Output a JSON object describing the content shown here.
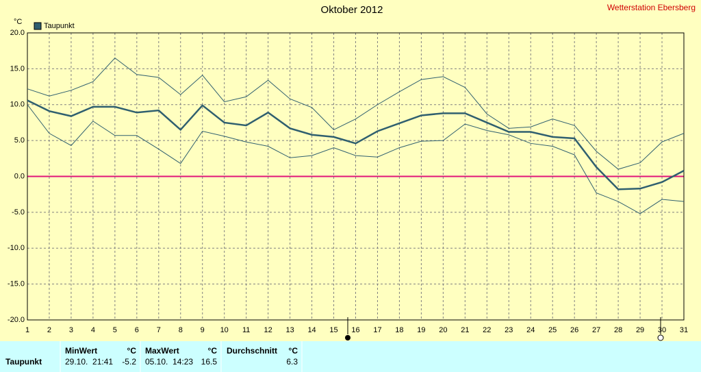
{
  "chart_data": {
    "type": "line",
    "title": "Oktober 2012",
    "station": "Wetterstation Ebersberg",
    "y_label": "°C",
    "x": [
      1,
      2,
      3,
      4,
      5,
      6,
      7,
      8,
      9,
      10,
      11,
      12,
      13,
      14,
      15,
      16,
      17,
      18,
      19,
      20,
      21,
      22,
      23,
      24,
      25,
      26,
      27,
      28,
      29,
      30,
      31
    ],
    "series": [
      {
        "name": "Taupunkt",
        "color": "#2f5f6f",
        "values": [
          10.6,
          9.1,
          8.4,
          9.7,
          9.7,
          8.9,
          9.2,
          6.5,
          9.9,
          7.5,
          7.1,
          8.9,
          6.7,
          5.8,
          5.5,
          4.6,
          6.3,
          7.4,
          8.5,
          8.8,
          8.8,
          7.5,
          6.2,
          6.2,
          5.5,
          5.3,
          1.3,
          -1.8,
          -1.7,
          -0.8,
          0.8
        ]
      },
      {
        "color": "#2f5f6f",
        "values": [
          12.2,
          11.2,
          12.0,
          13.2,
          16.5,
          14.2,
          13.8,
          11.4,
          14.1,
          10.4,
          11.1,
          13.4,
          10.8,
          9.6,
          6.5,
          8.0,
          10.0,
          11.8,
          13.5,
          13.9,
          12.4,
          8.7,
          6.7,
          6.9,
          8.0,
          7.1,
          3.5,
          1.0,
          1.9,
          4.8,
          6.0
        ]
      },
      {
        "color": "#2f5f6f",
        "values": [
          10.0,
          6.0,
          4.3,
          7.7,
          5.7,
          5.7,
          3.8,
          1.8,
          6.3,
          5.6,
          4.8,
          4.2,
          2.6,
          2.9,
          4.0,
          2.9,
          2.7,
          4.0,
          4.9,
          5.0,
          7.3,
          6.4,
          5.8,
          4.6,
          4.2,
          3.0,
          -2.3,
          -3.5,
          -5.2,
          -3.2,
          -3.5
        ]
      }
    ],
    "xlim": [
      1,
      31
    ],
    "xticks": [
      1,
      2,
      3,
      4,
      5,
      6,
      7,
      8,
      9,
      10,
      11,
      12,
      13,
      14,
      15,
      16,
      17,
      18,
      19,
      20,
      21,
      22,
      23,
      24,
      25,
      26,
      27,
      28,
      29,
      30,
      31
    ],
    "ylim": [
      -20,
      20
    ],
    "yticks": [
      {
        "value": -20,
        "label": "-20.0"
      },
      {
        "value": -15,
        "label": "-15.0"
      },
      {
        "value": -10,
        "label": "-10.0"
      },
      {
        "value": -5,
        "label": "-5.0"
      },
      {
        "value": 0,
        "label": "0.0"
      },
      {
        "value": 5,
        "label": "5.0"
      },
      {
        "value": 10,
        "label": "10.0"
      },
      {
        "value": 15,
        "label": "15.0"
      },
      {
        "value": 20,
        "label": "20.0"
      }
    ],
    "grid": true,
    "zero_line_color": "#e0147a"
  },
  "table": {
    "headers": [
      "MinWert",
      "°C",
      "MaxWert",
      "°C",
      "Durchschnitt",
      "°C"
    ],
    "rows": [
      [
        "Taupunkt",
        "29.10.  21:41",
        "-5.2",
        "05.10.  14:23",
        "16.5",
        "6.3"
      ]
    ]
  }
}
